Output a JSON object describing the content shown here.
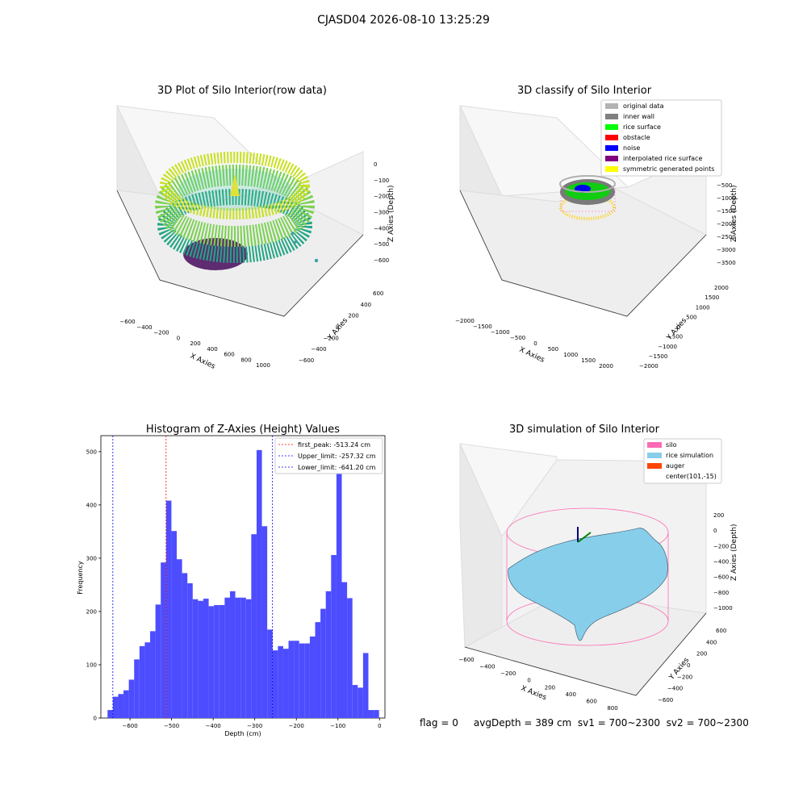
{
  "figure_title": "CJASD04 2026-08-10 13:25:29",
  "status_line": "flag = 0     avgDepth = 389 cm  sv1 = 700~2300  sv2 = 700~2300",
  "colors": {
    "histogram_bar": "#4d4dff",
    "first_peak_line": "#ff0000",
    "limit_lines": "#0000ff",
    "silo_wire": "#ff69b4",
    "rice_surface": "#87ceeb",
    "auger": "#ff4500",
    "classify": [
      "#b3b3b3",
      "#808080",
      "#00ff00",
      "#ff0000",
      "#0000ff",
      "#800080",
      "#ffff00"
    ]
  },
  "chart_data": [
    {
      "type": "scatter",
      "projection": "3d",
      "title": "3D Plot of Silo Interior(row data)",
      "xlabel": "X Axies",
      "ylabel": "Y Axies",
      "zlabel": "Z Axies (Depth)",
      "x_ticks": [
        "−600",
        "−400",
        "−200",
        "0",
        "200",
        "400",
        "600",
        "800",
        "1000"
      ],
      "y_ticks": [
        "−600",
        "−400",
        "−200",
        "0",
        "200",
        "400",
        "600"
      ],
      "z_ticks": [
        "0",
        "−100",
        "−200",
        "−300",
        "−400",
        "−500",
        "−600"
      ],
      "colormap": "viridis"
    },
    {
      "type": "scatter",
      "projection": "3d",
      "title": "3D classify of Silo Interior",
      "xlabel": "X Axies",
      "ylabel": "Y Axies",
      "zlabel": "Z Axies (Depth)",
      "x_ticks": [
        "−2000",
        "−1500",
        "−1000",
        "−500",
        "0",
        "500",
        "1000",
        "1500",
        "2000"
      ],
      "y_ticks": [
        "−2000",
        "−1500",
        "−1000",
        "−500",
        "0",
        "500",
        "1000",
        "1500",
        "2000"
      ],
      "z_ticks": [
        "0",
        "−500",
        "−1000",
        "−1500",
        "−2000",
        "−2500",
        "−3000",
        "−3500"
      ],
      "legend": [
        "original data",
        "inner wall",
        "rice surface",
        "obstacle",
        "noise",
        "interpolated rice surface",
        "symmetric generated points"
      ],
      "legend_position": "top-right"
    },
    {
      "type": "bar",
      "title": "Histogram of Z-Axies (Height) Values",
      "xlabel": "Depth (cm)",
      "ylabel": "Frequency",
      "xlim": [
        -670,
        13
      ],
      "ylim": [
        0,
        530
      ],
      "x_ticks": [
        -600,
        -500,
        -400,
        -300,
        -200,
        -100,
        0
      ],
      "x_tick_labels": [
        "−600",
        "−500",
        "−400",
        "−300",
        "−200",
        "−100",
        "0"
      ],
      "y_ticks": [
        0,
        100,
        200,
        300,
        400,
        500
      ],
      "bin_start": -654,
      "bin_width": 12.8,
      "values": [
        15,
        40,
        45,
        52,
        72,
        110,
        135,
        142,
        163,
        213,
        292,
        408,
        351,
        298,
        272,
        253,
        223,
        220,
        224,
        210,
        212,
        212,
        226,
        238,
        226,
        226,
        223,
        345,
        503,
        360,
        166,
        127,
        135,
        130,
        145,
        145,
        140,
        140,
        153,
        180,
        205,
        238,
        306,
        470,
        255,
        225,
        62,
        57,
        122,
        15,
        15
      ],
      "vlines": [
        {
          "label": "first_peak: -513.24 cm",
          "x": -513.24,
          "color": "#ff0000"
        },
        {
          "label": "Upper_limit: -257.32 cm",
          "x": -257.32,
          "color": "#0000ff"
        },
        {
          "label": "Lower_limit: -641.20 cm",
          "x": -641.2,
          "color": "#0000ff"
        }
      ],
      "legend_position": "top-right"
    },
    {
      "type": "surface",
      "projection": "3d",
      "title": "3D simulation of Silo Interior",
      "xlabel": "X Axies",
      "ylabel": "Y Axies",
      "zlabel": "Z Axies (Depth)",
      "x_ticks": [
        "−600",
        "−400",
        "−200",
        "0",
        "200",
        "400",
        "600",
        "800"
      ],
      "y_ticks": [
        "−600",
        "−400",
        "−200",
        "0",
        "200",
        "400",
        "600"
      ],
      "z_ticks": [
        "200",
        "0",
        "−200",
        "−400",
        "−600",
        "−800",
        "−1000"
      ],
      "legend": [
        "silo",
        "rice simulation",
        "auger",
        "center(101,-15)"
      ],
      "legend_position": "top-right"
    }
  ]
}
